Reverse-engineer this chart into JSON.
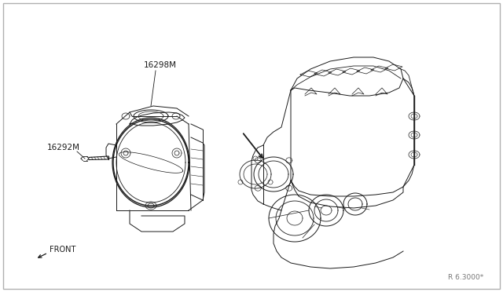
{
  "bg_color": "#ffffff",
  "border_color": "#b0b0b0",
  "line_color": "#1a1a1a",
  "label_color": "#1a1a1a",
  "ref_text": "R 6.3000*",
  "label_16292M": "16292M",
  "label_16298M": "16298M",
  "front_label": "FRONT",
  "label_fontsize": 7.5,
  "fig_width": 6.4,
  "fig_height": 3.72,
  "dpi": 100
}
